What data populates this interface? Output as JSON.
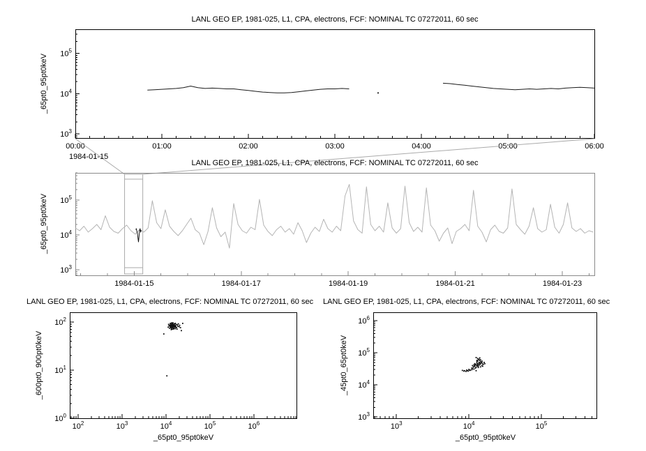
{
  "app": {
    "background": "#ffffff",
    "accent_gray": "#b4b4b4"
  },
  "chart_data": [
    {
      "id": "timeseries-zoom",
      "type": "line",
      "title": "LANL GEO EP, 1981-025, L1, CPA, electrons, FCF: NOMINAL TC 07272011, 60 sec",
      "ylabel": "_65pt0_95pt0keV",
      "xlabel": "",
      "x_axis": "linear",
      "x_units": "hours since 1984-01-15 00:00",
      "xlim": [
        0,
        6
      ],
      "ylim": [
        2.9,
        5.6
      ],
      "y_scale": "log",
      "y_ticks_exp": [
        3,
        4,
        5
      ],
      "x_ticks": {
        "values": [
          0,
          1,
          2,
          3,
          4,
          5,
          6
        ],
        "labels": [
          "00:00",
          "01:00",
          "02:00",
          "03:00",
          "04:00",
          "05:00",
          "06:00"
        ]
      },
      "x_minor_step": 0.16667,
      "x_context_label": "1984-01-15",
      "frame_color": "#000000",
      "series": [
        {
          "name": "electron-flux-65-95keV",
          "color": "#1a1a1a",
          "segments": [
            {
              "x0": 0.833,
              "dx": 0.0833,
              "log10_y": [
                4.09,
                4.1,
                4.11,
                4.12,
                4.13,
                4.15,
                4.19,
                4.15,
                4.13,
                4.14,
                4.13,
                4.12,
                4.12,
                4.1,
                4.08,
                4.06,
                4.04,
                4.03,
                4.02,
                4.02,
                4.03,
                4.05,
                4.07,
                4.09,
                4.11,
                4.12,
                4.12,
                4.13,
                4.12
              ]
            },
            {
              "x0": 4.25,
              "dx": 0.0833,
              "log10_y": [
                4.26,
                4.25,
                4.23,
                4.21,
                4.19,
                4.17,
                4.15,
                4.13,
                4.12,
                4.11,
                4.1,
                4.11,
                4.12,
                4.11,
                4.12,
                4.13,
                4.12,
                4.14,
                4.15,
                4.16,
                4.15,
                4.14
              ]
            }
          ],
          "points": [
            [
              3.5,
              4.02
            ]
          ]
        }
      ]
    },
    {
      "id": "timeseries-overview",
      "type": "line",
      "title": "LANL GEO EP, 1981-025, L1, CPA, electrons, FCF: NOMINAL TC 07272011, 60 sec",
      "ylabel": "_65pt0_95pt0keV",
      "xlabel": "",
      "x_axis": "linear",
      "x_units": "days since 1984-01-15 00:00",
      "xlim": [
        -1.1,
        8.6
      ],
      "ylim": [
        2.84,
        5.78
      ],
      "y_scale": "log",
      "y_ticks_exp": [
        3,
        4,
        5
      ],
      "x_ticks": {
        "values": [
          0,
          2,
          4,
          6,
          8
        ],
        "labels": [
          "1984-01-15",
          "1984-01-17",
          "1984-01-19",
          "1984-01-21",
          "1984-01-23"
        ]
      },
      "x_minor_step": 0.5,
      "frame_color": "#8a8a8a",
      "zoom_box": {
        "x_range": [
          -0.18,
          0.16
        ],
        "color": "#aaaaaa"
      },
      "series": [
        {
          "name": "overview-context",
          "color": "#b4b4b4",
          "segments": [
            {
              "x0": -1.1,
              "dx": 0.08,
              "log10_y": [
                4.2,
                4.12,
                4.25,
                4.08,
                4.18,
                4.3,
                4.15,
                4.55,
                4.22,
                4.1,
                4.05,
                4.18,
                4.28,
                4.12,
                4.02,
                4.15,
                4.08,
                4.2,
                4.98,
                4.35,
                4.18,
                4.72,
                4.25,
                4.1,
                3.98,
                4.12,
                4.3,
                4.48,
                4.15,
                4.05,
                3.72,
                4.1,
                4.78,
                4.2,
                3.95,
                4.08,
                3.62,
                4.9,
                4.3,
                4.12,
                4.05,
                4.22,
                4.15,
                5.02,
                4.28,
                4.1,
                3.98,
                4.15,
                4.25,
                4.08,
                4.18,
                4.02,
                4.35,
                4.12,
                3.78,
                4.05,
                4.22,
                4.1,
                4.45,
                4.18,
                4.08,
                4.25,
                4.12,
                5.12,
                5.45,
                4.4,
                4.15,
                4.05,
                5.38,
                4.3,
                4.12,
                4.25,
                4.08,
                4.92,
                4.2,
                4.05,
                4.18,
                5.4,
                4.35,
                4.1,
                4.22,
                4.08,
                5.35,
                4.28,
                4.12,
                3.82,
                4.05,
                4.2,
                3.75,
                4.1,
                4.18,
                4.3,
                4.12,
                5.28,
                4.25,
                4.08,
                3.8,
                4.15,
                4.28,
                4.1,
                4.05,
                4.2,
                5.32,
                4.3,
                4.15,
                4.02,
                4.25,
                4.78,
                4.18,
                4.08,
                4.15,
                4.88,
                4.22,
                4.05,
                4.3,
                4.92,
                4.2,
                4.1,
                4.18,
                4.05,
                4.12,
                4.08
              ]
            }
          ]
        },
        {
          "name": "zoomed-interval-highlight",
          "color": "#111111",
          "segments": [
            {
              "x0": 0.03,
              "dx": 0.01,
              "log10_y": [
                4.15,
                4.18,
                4.1,
                4.05,
                3.92,
                3.8,
                3.95,
                4.12,
                4.18,
                4.08,
                4.14
              ]
            }
          ]
        }
      ]
    },
    {
      "id": "scatter-600-900-vs-65-95",
      "type": "scatter",
      "title": "LANL GEO EP, 1981-025, L1, CPA, electrons, FCF: NOMINAL TC 07272011, 60 sec",
      "xlabel": "_65pt0_95pt0keV",
      "ylabel": "_600pt0_900pt0keV",
      "x_axis": "log",
      "xlim": [
        1.81,
        6.97
      ],
      "ylim": [
        0,
        2.2
      ],
      "x_ticks_exp": [
        2,
        3,
        4,
        5,
        6
      ],
      "y_ticks_exp": [
        0,
        1,
        2
      ],
      "frame_color": "#000000",
      "point_color": "#111111",
      "points_log10": [
        [
          4.12,
          1.92
        ],
        [
          4.15,
          1.88
        ],
        [
          4.18,
          1.95
        ],
        [
          4.1,
          1.9
        ],
        [
          4.2,
          1.93
        ],
        [
          4.14,
          1.97
        ],
        [
          4.16,
          1.85
        ],
        [
          4.22,
          1.91
        ],
        [
          4.08,
          1.87
        ],
        [
          4.13,
          1.94
        ],
        [
          4.17,
          1.9
        ],
        [
          4.11,
          1.96
        ],
        [
          4.19,
          1.89
        ],
        [
          4.15,
          1.92
        ],
        [
          4.21,
          1.86
        ],
        [
          4.09,
          1.93
        ],
        [
          4.16,
          1.98
        ],
        [
          4.12,
          1.84
        ],
        [
          4.18,
          1.91
        ],
        [
          4.14,
          1.89
        ],
        [
          4.23,
          1.95
        ],
        [
          4.1,
          1.97
        ],
        [
          4.17,
          1.87
        ],
        [
          4.13,
          1.9
        ],
        [
          4.2,
          1.92
        ],
        [
          4.15,
          1.94
        ],
        [
          4.11,
          1.88
        ],
        [
          4.19,
          1.96
        ],
        [
          4.16,
          1.91
        ],
        [
          4.22,
          1.89
        ],
        [
          4.12,
          1.93
        ],
        [
          4.18,
          1.86
        ],
        [
          4.14,
          1.95
        ],
        [
          4.09,
          1.91
        ],
        [
          4.17,
          1.93
        ],
        [
          4.21,
          1.97
        ],
        [
          4.13,
          1.85
        ],
        [
          4.16,
          1.9
        ],
        [
          4.1,
          1.94
        ],
        [
          4.19,
          1.92
        ],
        [
          4.24,
          1.88
        ],
        [
          4.15,
          1.96
        ],
        [
          4.11,
          1.91
        ],
        [
          4.18,
          1.94
        ],
        [
          4.13,
          1.98
        ],
        [
          4.2,
          1.9
        ],
        [
          4.16,
          1.93
        ],
        [
          4.12,
          1.87
        ],
        [
          4.22,
          1.92
        ],
        [
          4.14,
          1.91
        ],
        [
          4.26,
          1.94
        ],
        [
          4.3,
          1.9
        ],
        [
          4.05,
          1.89
        ],
        [
          4.28,
          1.96
        ],
        [
          4.07,
          1.92
        ],
        [
          4.25,
          1.85
        ],
        [
          4.31,
          1.93
        ],
        [
          4.06,
          1.95
        ],
        [
          4.27,
          1.91
        ],
        [
          4.33,
          1.88
        ],
        [
          4.02,
          0.88
        ],
        [
          3.95,
          1.75
        ],
        [
          4.38,
          1.97
        ],
        [
          4.35,
          1.82
        ]
      ]
    },
    {
      "id": "scatter-45-65-vs-65-95",
      "type": "scatter",
      "title": "LANL GEO EP, 1981-025, L1, CPA, electrons, FCF: NOMINAL TC 07272011, 60 sec",
      "xlabel": "_65pt0_95pt0keV",
      "ylabel": "_45pt0_65pt0keV",
      "x_axis": "log",
      "xlim": [
        2.68,
        5.76
      ],
      "ylim": [
        2.96,
        6.26
      ],
      "x_ticks_exp": [
        3,
        4,
        5
      ],
      "y_ticks_exp": [
        3,
        4,
        5,
        6
      ],
      "frame_color": "#000000",
      "point_color": "#111111",
      "points_log10": [
        [
          4.1,
          4.62
        ],
        [
          4.12,
          4.66
        ],
        [
          4.14,
          4.7
        ],
        [
          4.16,
          4.72
        ],
        [
          4.18,
          4.7
        ],
        [
          4.19,
          4.65
        ],
        [
          4.18,
          4.6
        ],
        [
          4.16,
          4.56
        ],
        [
          4.13,
          4.54
        ],
        [
          4.1,
          4.55
        ],
        [
          4.08,
          4.58
        ],
        [
          4.07,
          4.62
        ],
        [
          4.08,
          4.66
        ],
        [
          4.11,
          4.68
        ],
        [
          4.14,
          4.66
        ],
        [
          4.15,
          4.62
        ],
        [
          4.13,
          4.58
        ],
        [
          4.11,
          4.6
        ],
        [
          4.12,
          4.63
        ],
        [
          4.15,
          4.68
        ],
        [
          4.05,
          4.5
        ],
        [
          4.02,
          4.46
        ],
        [
          3.99,
          4.43
        ],
        [
          3.96,
          4.42
        ],
        [
          3.93,
          4.43
        ],
        [
          3.91,
          4.45
        ],
        [
          3.94,
          4.44
        ],
        [
          3.98,
          4.44
        ],
        [
          4.01,
          4.45
        ],
        [
          4.04,
          4.47
        ],
        [
          4.07,
          4.49
        ],
        [
          4.09,
          4.52
        ],
        [
          4.12,
          4.74
        ],
        [
          4.13,
          4.78
        ],
        [
          4.12,
          4.82
        ],
        [
          4.1,
          4.85
        ],
        [
          4.14,
          4.8
        ],
        [
          4.15,
          4.76
        ],
        [
          4.16,
          4.78
        ],
        [
          4.11,
          4.76
        ],
        [
          4.17,
          4.68
        ],
        [
          4.2,
          4.64
        ],
        [
          4.18,
          4.74
        ],
        [
          4.06,
          4.55
        ],
        [
          4.04,
          4.52
        ],
        [
          4.09,
          4.64
        ],
        [
          4.13,
          4.62
        ],
        [
          4.16,
          4.66
        ],
        [
          4.08,
          4.61
        ],
        [
          4.12,
          4.58
        ],
        [
          4.21,
          4.7
        ],
        [
          4.19,
          4.58
        ],
        [
          4.05,
          4.6
        ],
        [
          4.15,
          4.84
        ],
        [
          4.1,
          4.44
        ],
        [
          4.0,
          4.48
        ],
        [
          3.97,
          4.46
        ],
        [
          4.22,
          4.66
        ],
        [
          4.07,
          4.57
        ],
        [
          4.11,
          4.72
        ]
      ]
    }
  ]
}
